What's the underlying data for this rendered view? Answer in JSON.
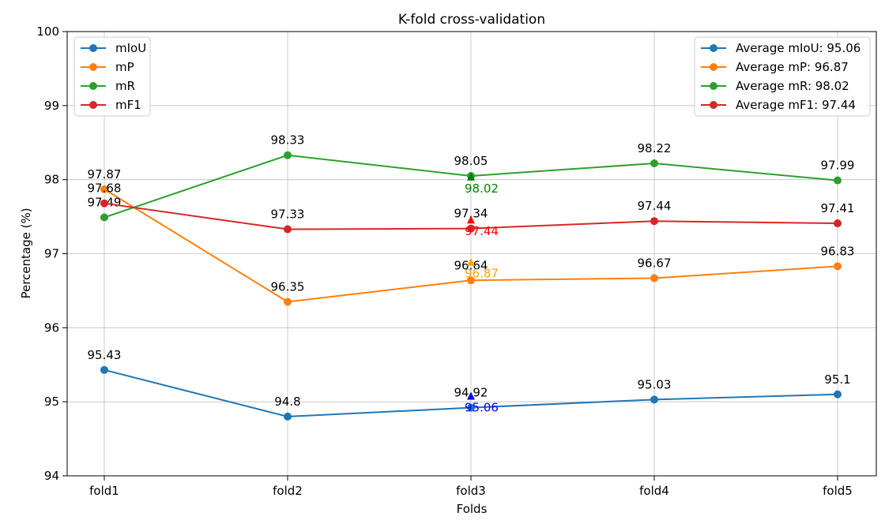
{
  "chart_data": {
    "type": "line",
    "title": "K-fold cross-validation",
    "xlabel": "Folds",
    "ylabel": "Percentage (%)",
    "categories": [
      "fold1",
      "fold2",
      "fold3",
      "fold4",
      "fold5"
    ],
    "ylim": [
      94,
      100
    ],
    "yticks": [
      "94",
      "95",
      "96",
      "97",
      "98",
      "99",
      "100"
    ],
    "grid": true,
    "series": [
      {
        "name": "mIoU",
        "color": "#1f77b4",
        "values": [
          95.43,
          94.8,
          94.92,
          95.03,
          95.1
        ],
        "labels": [
          "95.43",
          "94.8",
          "94.92",
          "95.03",
          "95.1"
        ]
      },
      {
        "name": "mP",
        "color": "#ff7f0e",
        "values": [
          97.87,
          96.35,
          96.64,
          96.67,
          96.83
        ],
        "labels": [
          "97.87",
          "96.35",
          "96.64",
          "96.67",
          "96.83"
        ]
      },
      {
        "name": "mR",
        "color": "#2ca02c",
        "values": [
          97.49,
          98.33,
          98.05,
          98.22,
          97.99
        ],
        "labels": [
          "97.49",
          "98.33",
          "98.05",
          "98.22",
          "97.99"
        ]
      },
      {
        "name": "mF1",
        "color": "#d62728",
        "values": [
          97.68,
          97.33,
          97.34,
          97.44,
          97.41
        ],
        "labels": [
          "97.68",
          "97.33",
          "97.34",
          "97.44",
          "97.41"
        ]
      }
    ],
    "averages": [
      {
        "legend": "Average mIoU: 95.06",
        "value": 95.06,
        "label": "95.06",
        "label_color": "#0000ff",
        "marker_color": "#0000ff"
      },
      {
        "legend": "Average mP: 96.87",
        "value": 96.87,
        "label": "96.87",
        "label_color": "#ffa500",
        "marker_color": "#ffa500"
      },
      {
        "legend": "Average mR: 98.02",
        "value": 98.02,
        "label": "98.02",
        "label_color": "#008000",
        "marker_color": "#008000"
      },
      {
        "legend": "Average mF1: 97.44",
        "value": 97.44,
        "label": "97.44",
        "label_color": "#ff0000",
        "marker_color": "#ff0000"
      }
    ],
    "average_at_category": "fold3",
    "legend_left_placement": "top-left",
    "legend_right_placement": "top-right"
  }
}
